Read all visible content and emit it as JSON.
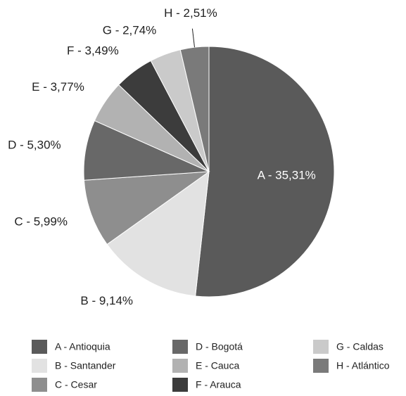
{
  "chart_data": {
    "type": "pie",
    "categories": [
      "A - Antioquia",
      "B - Santander",
      "C - Cesar",
      "D - Bogotá",
      "E - Cauca",
      "F - Arauca",
      "G - Caldas",
      "H - Atlántico"
    ],
    "values": [
      35.31,
      9.14,
      5.99,
      5.3,
      3.77,
      3.49,
      2.74,
      2.51
    ],
    "value_labels": [
      "A - 35,31%",
      "B - 9,14%",
      "C - 5,99%",
      "D - 5,30%",
      "E - 3,77%",
      "F - 3,49%",
      "G - 2,74%",
      "H - 2,51%"
    ],
    "colors": [
      "#5a5a5a",
      "#e2e2e2",
      "#8e8e8e",
      "#686868",
      "#b2b2b2",
      "#3c3c3c",
      "#cacaca",
      "#7a7a7a"
    ]
  }
}
